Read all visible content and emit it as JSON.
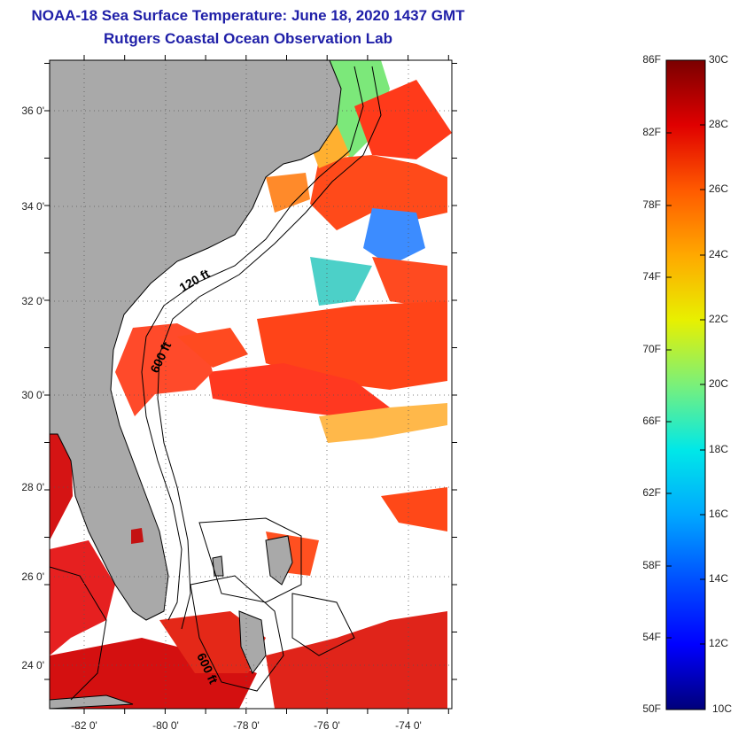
{
  "title_line1": "NOAA-18 Sea Surface Temperature:  June 18, 2020 1437 GMT",
  "title_line2": "Rutgers Coastal Ocean Observation Lab",
  "lat_labels": [
    "36 0'",
    "34 0'",
    "32 0'",
    "30 0'",
    "28 0'",
    "26 0'",
    "24 0'"
  ],
  "lon_labels": [
    "-82 0'",
    "-80 0'",
    "-78 0'",
    "-76 0'",
    "-74 0'"
  ],
  "contour_labels": [
    "120 ft",
    "600 ft",
    "600 ft"
  ],
  "colorbar": {
    "fahrenheit": [
      "86F",
      "82F",
      "78F",
      "74F",
      "70F",
      "66F",
      "62F",
      "58F",
      "54F",
      "50F"
    ],
    "celsius": [
      "30C",
      "28C",
      "26C",
      "24C",
      "22C",
      "20C",
      "18C",
      "16C",
      "14C",
      "12C",
      "10C"
    ]
  },
  "colors": {
    "title": "#1f1fa8",
    "land": "#a9a9a9",
    "no_data": "#ffffff",
    "contour": "#000000"
  }
}
